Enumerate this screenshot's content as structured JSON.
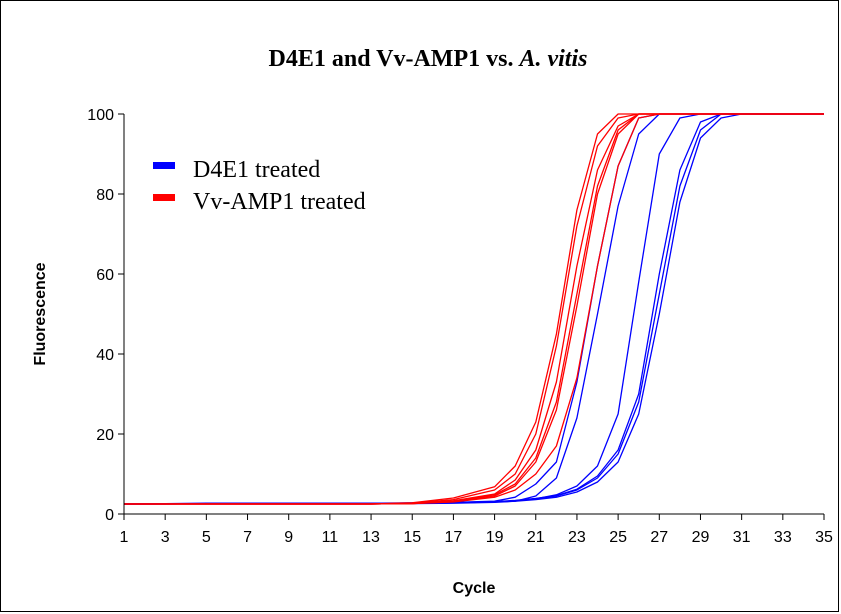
{
  "chart_data": {
    "type": "line",
    "title_main": "D4E1 and Vv-AMP1 vs. ",
    "title_italic": "A. vitis",
    "xlabel": "Cycle",
    "ylabel": "Fluorescence",
    "xlim": [
      1,
      35
    ],
    "ylim": [
      0,
      100
    ],
    "xticks": [
      1,
      3,
      5,
      7,
      9,
      11,
      13,
      15,
      17,
      19,
      21,
      23,
      25,
      27,
      29,
      31,
      33,
      35
    ],
    "yticks": [
      0,
      20,
      40,
      60,
      80,
      100
    ],
    "grid": false,
    "legend_position": "top-left",
    "legend": [
      {
        "label": "D4E1 treated",
        "color": "#0000ff"
      },
      {
        "label": "Vv-AMP1 treated",
        "color": "#ff0000"
      }
    ],
    "series": [
      {
        "group": "D4E1 treated",
        "color": "#0000ff",
        "x": [
          1,
          3,
          5,
          7,
          9,
          11,
          13,
          15,
          17,
          19,
          20,
          21,
          22,
          23,
          24,
          25,
          26,
          27,
          28,
          29,
          30,
          31,
          33,
          35
        ],
        "values": [
          2.5,
          2.5,
          2.6,
          2.6,
          2.6,
          2.6,
          2.6,
          2.7,
          2.8,
          3.0,
          3.3,
          3.8,
          4.5,
          6.0,
          9.0,
          15.0,
          28.0,
          55.0,
          82.0,
          96.0,
          100,
          100,
          100,
          100
        ]
      },
      {
        "group": "D4E1 treated",
        "color": "#0000ff",
        "x": [
          1,
          3,
          5,
          7,
          9,
          11,
          13,
          15,
          17,
          19,
          20,
          21,
          22,
          23,
          24,
          25,
          26,
          27,
          28,
          29,
          30,
          31,
          33,
          35
        ],
        "values": [
          2.6,
          2.6,
          2.7,
          2.7,
          2.7,
          2.7,
          2.7,
          2.8,
          2.9,
          3.1,
          3.4,
          3.9,
          4.6,
          6.2,
          9.5,
          16.0,
          30.0,
          60.0,
          86.0,
          98.0,
          100,
          100,
          100,
          100
        ]
      },
      {
        "group": "D4E1 treated",
        "color": "#0000ff",
        "x": [
          1,
          3,
          5,
          7,
          9,
          11,
          13,
          15,
          17,
          19,
          20,
          21,
          22,
          23,
          24,
          25,
          26,
          27,
          28,
          29,
          30,
          31,
          33,
          35
        ],
        "values": [
          2.5,
          2.5,
          2.6,
          2.6,
          2.6,
          2.6,
          2.6,
          2.7,
          2.8,
          3.0,
          3.2,
          3.6,
          4.2,
          5.5,
          8.0,
          13.0,
          25.0,
          50.0,
          78.0,
          94.0,
          99.0,
          100,
          100,
          100
        ]
      },
      {
        "group": "D4E1 treated",
        "color": "#0000ff",
        "x": [
          1,
          3,
          5,
          7,
          9,
          11,
          13,
          15,
          17,
          19,
          20,
          21,
          22,
          23,
          24,
          25,
          26,
          27,
          28,
          29,
          30,
          31,
          33,
          35
        ],
        "values": [
          2.6,
          2.6,
          2.6,
          2.6,
          2.6,
          2.6,
          2.6,
          2.7,
          2.8,
          3.0,
          3.3,
          3.8,
          4.8,
          7.0,
          12.0,
          25.0,
          58.0,
          90.0,
          99.0,
          100,
          100,
          100,
          100,
          100
        ]
      },
      {
        "group": "D4E1 treated",
        "color": "#0000ff",
        "x": [
          1,
          3,
          5,
          7,
          9,
          11,
          13,
          15,
          17,
          19,
          20,
          21,
          22,
          23,
          24,
          25,
          26,
          27,
          28,
          29,
          30,
          31,
          33,
          35
        ],
        "values": [
          2.4,
          2.5,
          2.5,
          2.5,
          2.5,
          2.5,
          2.5,
          2.6,
          2.7,
          2.9,
          3.2,
          4.5,
          9.0,
          24.0,
          50.0,
          77.0,
          95.0,
          100,
          100,
          100,
          100,
          100,
          100,
          100
        ]
      },
      {
        "group": "D4E1 treated",
        "color": "#0000ff",
        "x": [
          1,
          3,
          5,
          7,
          9,
          11,
          13,
          15,
          17,
          19,
          20,
          21,
          22,
          23,
          24,
          25,
          26,
          27,
          28,
          29,
          30,
          31,
          33,
          35
        ],
        "values": [
          2.5,
          2.5,
          2.6,
          2.6,
          2.6,
          2.6,
          2.6,
          2.7,
          2.9,
          3.2,
          4.2,
          7.5,
          13.0,
          33.0,
          62.0,
          87.0,
          99.0,
          100,
          100,
          100,
          100,
          100,
          100,
          100
        ]
      },
      {
        "group": "Vv-AMP1 treated",
        "color": "#ff0000",
        "x": [
          1,
          3,
          5,
          7,
          9,
          11,
          13,
          15,
          17,
          19,
          20,
          21,
          22,
          23,
          24,
          25,
          26,
          27,
          28,
          29,
          30,
          31,
          33,
          35
        ],
        "values": [
          2.5,
          2.5,
          2.5,
          2.5,
          2.5,
          2.5,
          2.5,
          2.8,
          4.0,
          6.8,
          12.0,
          23.0,
          45.0,
          76.0,
          95.0,
          100,
          100,
          100,
          100,
          100,
          100,
          100,
          100,
          100
        ]
      },
      {
        "group": "Vv-AMP1 treated",
        "color": "#ff0000",
        "x": [
          1,
          3,
          5,
          7,
          9,
          11,
          13,
          15,
          17,
          19,
          20,
          21,
          22,
          23,
          24,
          25,
          26,
          27,
          28,
          29,
          30,
          31,
          33,
          35
        ],
        "values": [
          2.5,
          2.5,
          2.5,
          2.5,
          2.5,
          2.5,
          2.5,
          2.7,
          3.6,
          6.0,
          10.0,
          20.0,
          42.0,
          72.0,
          92.0,
          99.0,
          100,
          100,
          100,
          100,
          100,
          100,
          100,
          100
        ]
      },
      {
        "group": "Vv-AMP1 treated",
        "color": "#ff0000",
        "x": [
          1,
          3,
          5,
          7,
          9,
          11,
          13,
          15,
          17,
          19,
          20,
          21,
          22,
          23,
          24,
          25,
          26,
          27,
          28,
          29,
          30,
          31,
          33,
          35
        ],
        "values": [
          2.5,
          2.5,
          2.5,
          2.5,
          2.5,
          2.5,
          2.5,
          2.6,
          3.3,
          5.0,
          8.5,
          16.0,
          33.0,
          62.0,
          86.0,
          97.0,
          100,
          100,
          100,
          100,
          100,
          100,
          100,
          100
        ]
      },
      {
        "group": "Vv-AMP1 treated",
        "color": "#ff0000",
        "x": [
          1,
          3,
          5,
          7,
          9,
          11,
          13,
          15,
          17,
          19,
          20,
          21,
          22,
          23,
          24,
          25,
          26,
          27,
          28,
          29,
          30,
          31,
          33,
          35
        ],
        "values": [
          2.5,
          2.5,
          2.5,
          2.5,
          2.5,
          2.5,
          2.5,
          2.6,
          3.2,
          4.8,
          7.5,
          14.0,
          28.0,
          55.0,
          82.0,
          96.0,
          100,
          100,
          100,
          100,
          100,
          100,
          100,
          100
        ]
      },
      {
        "group": "Vv-AMP1 treated",
        "color": "#ff0000",
        "x": [
          1,
          3,
          5,
          7,
          9,
          11,
          13,
          15,
          17,
          19,
          20,
          21,
          22,
          23,
          24,
          25,
          26,
          27,
          28,
          29,
          30,
          31,
          33,
          35
        ],
        "values": [
          2.5,
          2.5,
          2.5,
          2.5,
          2.5,
          2.5,
          2.5,
          2.6,
          3.1,
          4.5,
          7.0,
          13.0,
          26.0,
          52.0,
          80.0,
          95.0,
          100,
          100,
          100,
          100,
          100,
          100,
          100,
          100
        ]
      },
      {
        "group": "Vv-AMP1 treated",
        "color": "#ff0000",
        "x": [
          1,
          3,
          5,
          7,
          9,
          11,
          13,
          15,
          17,
          19,
          20,
          21,
          22,
          23,
          24,
          25,
          26,
          27,
          28,
          29,
          30,
          31,
          33,
          35
        ],
        "values": [
          2.5,
          2.5,
          2.5,
          2.5,
          2.5,
          2.5,
          2.5,
          2.6,
          3.0,
          4.2,
          6.0,
          10.0,
          17.0,
          34.0,
          62.0,
          87.0,
          99.0,
          100,
          100,
          100,
          100,
          100,
          100,
          100
        ]
      }
    ]
  }
}
